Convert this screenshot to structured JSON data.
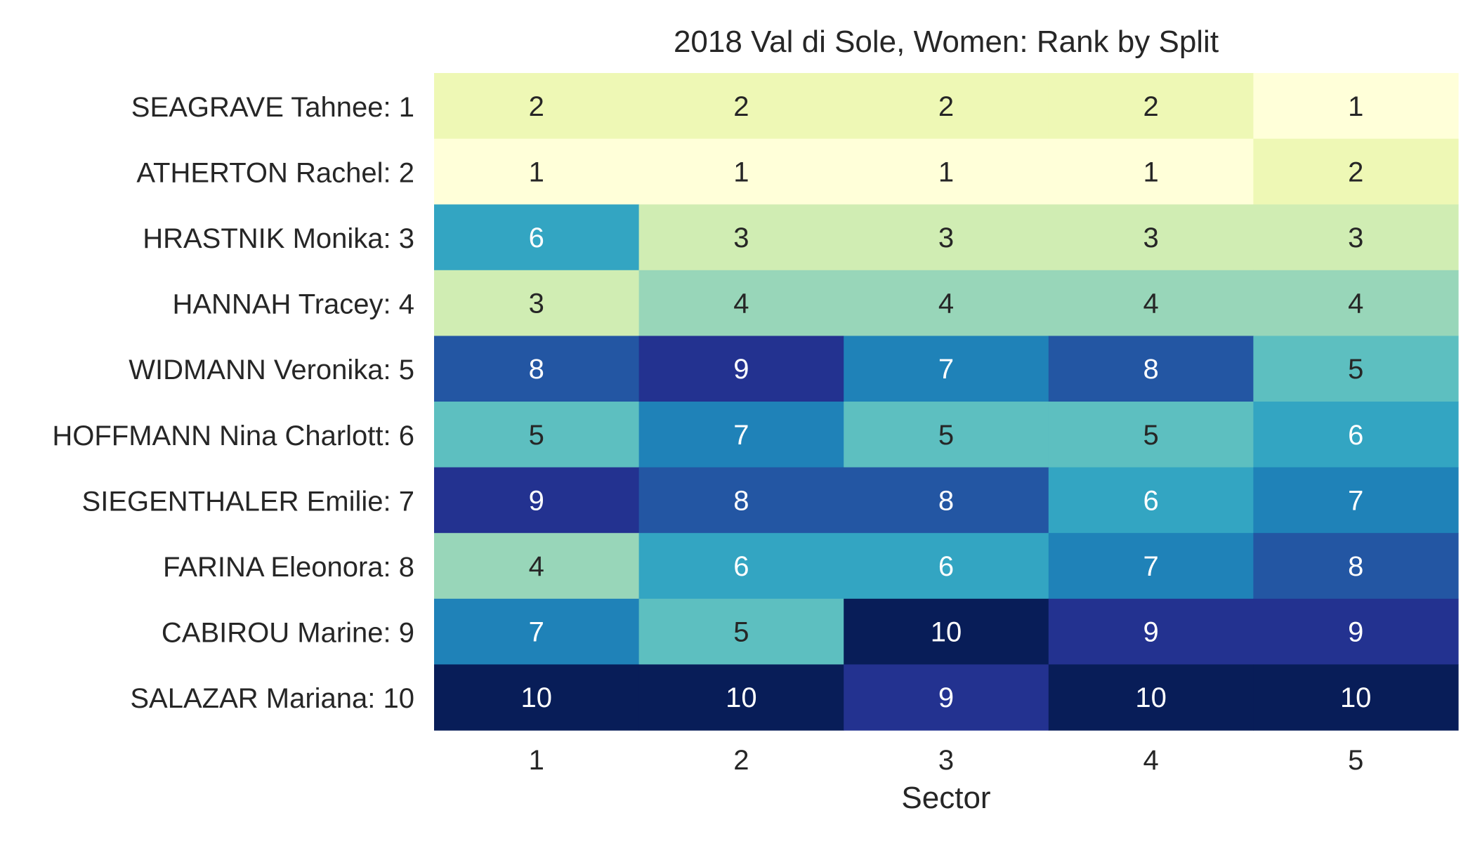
{
  "chart_data": {
    "type": "heatmap",
    "title": "2018 Val di Sole, Women: Rank by Split",
    "xlabel": "Sector",
    "ylabel": "",
    "x_categories": [
      "1",
      "2",
      "3",
      "4",
      "5"
    ],
    "y_categories": [
      "SEAGRAVE Tahnee: 1",
      "ATHERTON Rachel: 2",
      "HRASTNIK Monika: 3",
      "HANNAH Tracey: 4",
      "WIDMANN Veronika: 5",
      "HOFFMANN Nina Charlott: 6",
      "SIEGENTHALER Emilie: 7",
      "FARINA Eleonora: 8",
      "CABIROU Marine: 9",
      "SALAZAR Mariana: 10"
    ],
    "values": [
      [
        2,
        2,
        2,
        2,
        1
      ],
      [
        1,
        1,
        1,
        1,
        2
      ],
      [
        6,
        3,
        3,
        3,
        3
      ],
      [
        3,
        4,
        4,
        4,
        4
      ],
      [
        8,
        9,
        7,
        8,
        5
      ],
      [
        5,
        7,
        5,
        5,
        6
      ],
      [
        9,
        8,
        8,
        6,
        7
      ],
      [
        4,
        6,
        6,
        7,
        8
      ],
      [
        7,
        5,
        10,
        9,
        9
      ],
      [
        10,
        10,
        9,
        10,
        10
      ]
    ],
    "colormap": "YlGnBu",
    "value_range": [
      1,
      10
    ],
    "color_by_value": {
      "1": "#ffffd9",
      "2": "#eef8b5",
      "3": "#d0edb3",
      "4": "#98d6b9",
      "5": "#5dbfc0",
      "6": "#33a5c2",
      "7": "#1f82b8",
      "8": "#2356a3",
      "9": "#233290",
      "10": "#081d58"
    },
    "annotation_dark_text": "#262626",
    "annotation_light_text": "#ffffff",
    "colorbar": false,
    "grid": false
  }
}
